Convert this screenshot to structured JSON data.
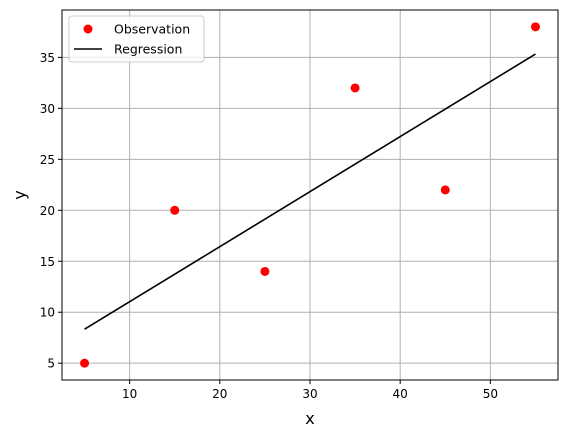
{
  "chart_data": {
    "type": "scatter",
    "title": "",
    "xlabel": "x",
    "ylabel": "y",
    "xlim": [
      2.5,
      57.5
    ],
    "ylim": [
      3.35,
      39.65
    ],
    "xticks": [
      10,
      20,
      30,
      40,
      50
    ],
    "yticks": [
      5,
      10,
      15,
      20,
      25,
      30,
      35
    ],
    "grid": true,
    "legend_position": "top-left",
    "series": [
      {
        "name": "Observation",
        "kind": "scatter",
        "color": "#ff0000",
        "x": [
          5,
          15,
          25,
          35,
          45,
          55
        ],
        "y": [
          5,
          20,
          14,
          32,
          22,
          38
        ]
      },
      {
        "name": "Regression",
        "kind": "line",
        "color": "#000000",
        "x": [
          5,
          55
        ],
        "y": [
          8.33,
          35.33
        ]
      }
    ]
  }
}
